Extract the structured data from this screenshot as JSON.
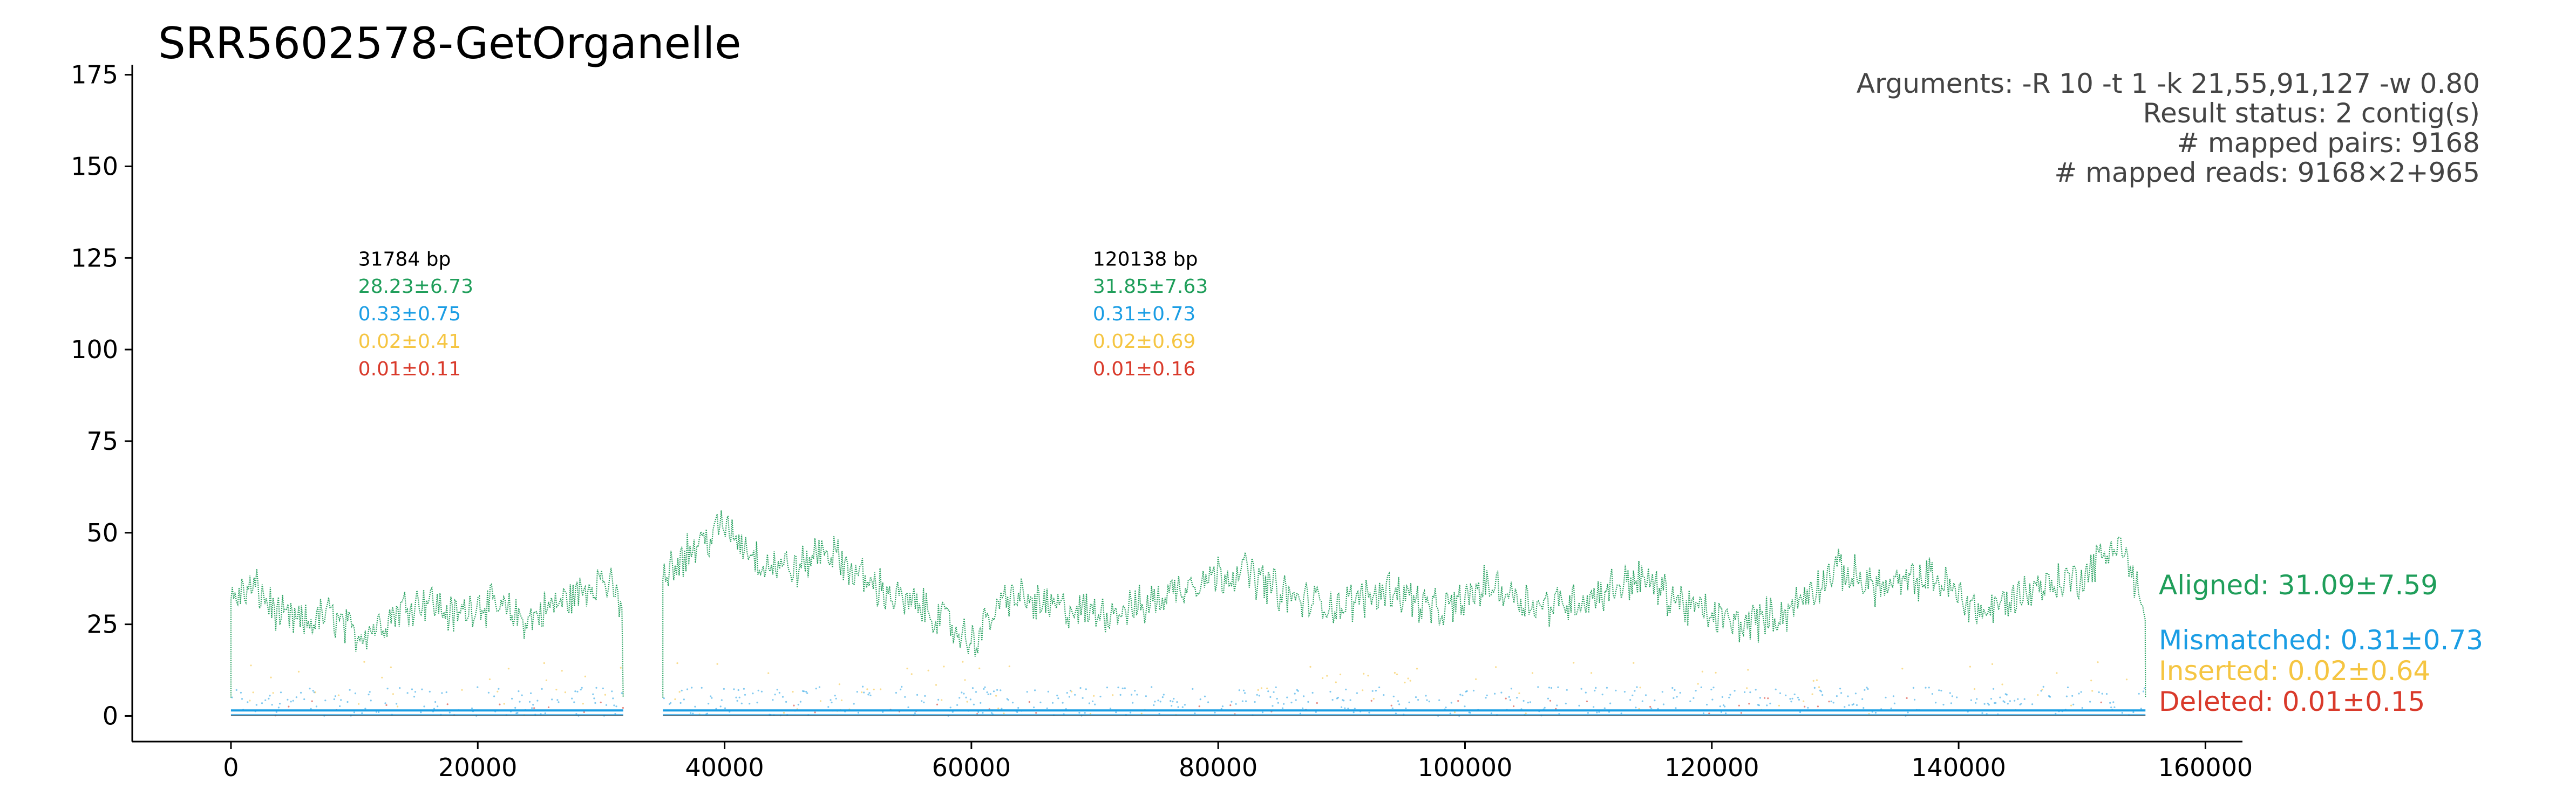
{
  "chart_data": {
    "type": "scatter",
    "title": "SRR5602578-GetOrganelle",
    "xlabel": "",
    "ylabel": "",
    "xlim": [
      -8000,
      163000
    ],
    "ylim": [
      -7,
      177
    ],
    "xticks": [
      0,
      20000,
      40000,
      60000,
      80000,
      100000,
      120000,
      140000,
      160000
    ],
    "xtick_labels": [
      "0",
      "20000",
      "40000",
      "60000",
      "80000",
      "100000",
      "120000",
      "140000",
      "160000"
    ],
    "yticks": [
      0,
      25,
      50,
      75,
      100,
      125,
      150,
      175
    ],
    "ytick_labels": [
      "0",
      "25",
      "50",
      "75",
      "100",
      "125",
      "150",
      "175"
    ],
    "grid": false,
    "info_lines": [
      "Arguments: -R 10 -t 1 -k 21,55,91,127 -w 0.80",
      "Result status: 2 contig(s)",
      "# mapped pairs: 9168",
      "# mapped reads: 9168×2+965"
    ],
    "contigs": [
      {
        "start": 0,
        "end": 31784,
        "length_label": "31784 bp",
        "aligned": "28.23±6.73",
        "mismatched": "0.33±0.75",
        "inserted": "0.02±0.41",
        "deleted": "0.01±0.11",
        "profile_x": [
          0,
          2000,
          4000,
          6000,
          8000,
          10000,
          12000,
          14000,
          16000,
          18000,
          20000,
          22000,
          24000,
          26000,
          28000,
          30000,
          31784
        ],
        "profile_y": [
          32,
          35,
          27,
          25,
          28,
          22,
          25,
          30,
          32,
          27,
          31,
          29,
          26,
          30,
          33,
          38,
          30
        ]
      },
      {
        "start": 35000,
        "end": 155138,
        "length_label": "120138 bp",
        "aligned": "31.85±7.63",
        "mismatched": "0.31±0.73",
        "inserted": "0.02±0.69",
        "deleted": "0.01±0.16",
        "profile_x": [
          35000,
          38000,
          40000,
          43000,
          46000,
          48000,
          51000,
          54000,
          57000,
          60000,
          63000,
          66000,
          70000,
          74000,
          78000,
          82000,
          86000,
          90000,
          94000,
          98000,
          102000,
          106000,
          110000,
          114000,
          118000,
          122000,
          126000,
          130000,
          134000,
          138000,
          142000,
          146000,
          150000,
          153000,
          155138
        ],
        "profile_y": [
          40,
          47,
          52,
          42,
          40,
          46,
          38,
          32,
          28,
          20,
          33,
          30,
          28,
          30,
          37,
          40,
          32,
          30,
          35,
          28,
          36,
          30,
          32,
          38,
          30,
          25,
          28,
          40,
          35,
          38,
          28,
          35,
          38,
          48,
          28
        ]
      }
    ],
    "legend": [
      {
        "name": "Aligned: 31.09±7.59",
        "color": "#1f9e5a",
        "y": 31.09
      },
      {
        "name": "Mismatched: 0.31±0.73",
        "color": "#1a9de4",
        "y": 0.31
      },
      {
        "name": "Inserted: 0.02±0.64",
        "color": "#f5c542",
        "y": 0.02
      },
      {
        "name": "Deleted: 0.01±0.15",
        "color": "#d93a2b",
        "y": 0.01
      }
    ],
    "colors": {
      "aligned": "#1f9e5a",
      "mismatched": "#1a9de4",
      "inserted": "#f5c542",
      "deleted": "#d93a2b",
      "contig_length": "#000000"
    }
  }
}
